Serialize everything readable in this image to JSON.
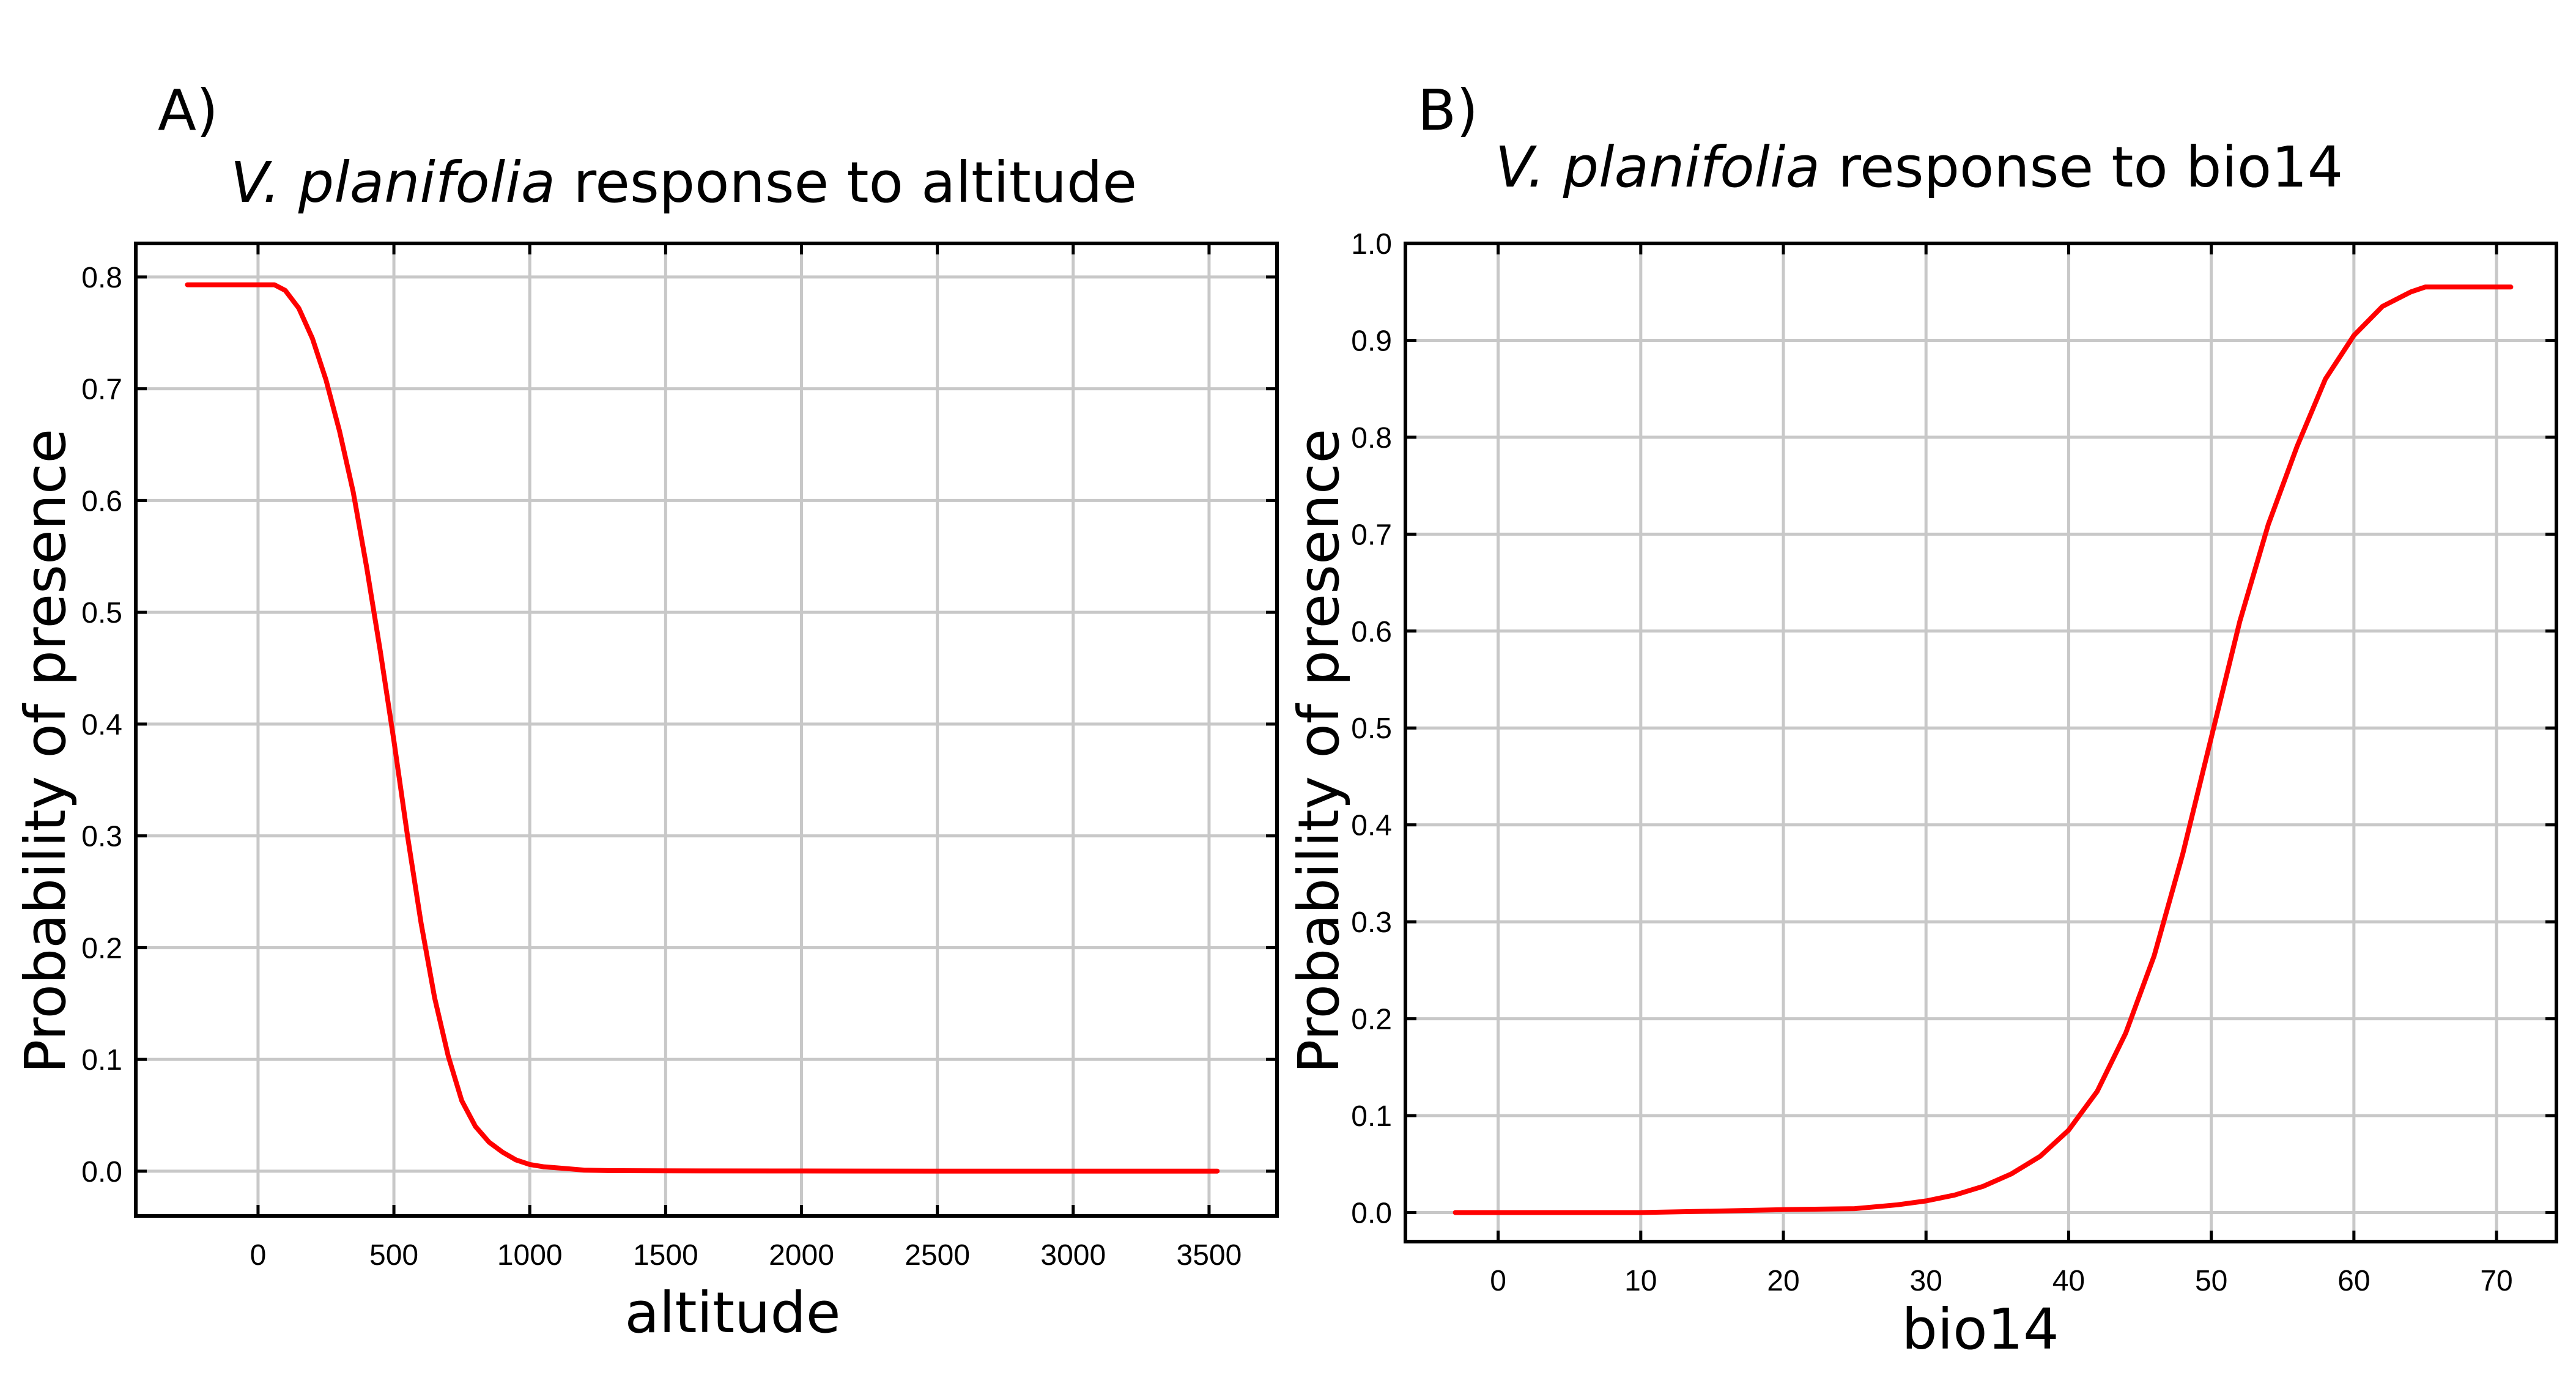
{
  "chart_data": [
    {
      "type": "line",
      "panel_label": "A)",
      "title_italic": "V. planifolia",
      "title_rest": " response to altitude",
      "xlabel": "altitude",
      "ylabel": "Probability of presence",
      "xlim": [
        -450,
        3750
      ],
      "ylim": [
        -0.04,
        0.83
      ],
      "x_ticks": [
        0,
        500,
        1000,
        1500,
        2000,
        2500,
        3000,
        3500
      ],
      "x_tick_labels": [
        "0",
        "500",
        "1000",
        "1500",
        "2000",
        "2500",
        "3000",
        "3500"
      ],
      "y_ticks": [
        0.0,
        0.1,
        0.2,
        0.3,
        0.4,
        0.5,
        0.6,
        0.7,
        0.8
      ],
      "y_tick_labels": [
        "0.0",
        "0.1",
        "0.2",
        "0.3",
        "0.4",
        "0.5",
        "0.6",
        "0.7",
        "0.8"
      ],
      "grid": true,
      "color": "#ff0000",
      "series": [
        {
          "x": [
            -260,
            0,
            60,
            100,
            150,
            200,
            250,
            300,
            350,
            400,
            450,
            500,
            550,
            600,
            650,
            700,
            750,
            800,
            850,
            900,
            950,
            1000,
            1050,
            1100,
            1150,
            1200,
            1300,
            1500,
            2000,
            2500,
            3000,
            3530
          ],
          "y": [
            0.793,
            0.793,
            0.793,
            0.788,
            0.772,
            0.745,
            0.708,
            0.662,
            0.608,
            0.54,
            0.465,
            0.385,
            0.3,
            0.222,
            0.155,
            0.103,
            0.063,
            0.04,
            0.026,
            0.017,
            0.01,
            0.006,
            0.004,
            0.003,
            0.002,
            0.001,
            0.0005,
            0.0003,
            0.0002,
            0.0001,
            0.0001,
            0.0001
          ]
        }
      ]
    },
    {
      "type": "line",
      "panel_label": "B)",
      "title_italic": "V. planifolia",
      "title_rest": " response to bio14",
      "xlabel": "bio14",
      "ylabel": "Probability of presence",
      "xlim": [
        -6.5,
        74.2
      ],
      "ylim": [
        -0.03,
        1.0
      ],
      "x_ticks": [
        0,
        10,
        20,
        30,
        40,
        50,
        60,
        70
      ],
      "x_tick_labels": [
        "0",
        "10",
        "20",
        "30",
        "40",
        "50",
        "60",
        "70"
      ],
      "y_ticks": [
        0.0,
        0.1,
        0.2,
        0.3,
        0.4,
        0.5,
        0.6,
        0.7,
        0.8,
        0.9,
        1.0
      ],
      "y_tick_labels": [
        "0.0",
        "0.1",
        "0.2",
        "0.3",
        "0.4",
        "0.5",
        "0.6",
        "0.7",
        "0.8",
        "0.9",
        "1.0"
      ],
      "grid": true,
      "color": "#ff0000",
      "series": [
        {
          "x": [
            -3,
            10,
            17,
            20,
            25,
            28,
            30,
            32,
            34,
            36,
            38,
            40,
            42,
            44,
            46,
            48,
            50,
            52,
            54,
            56,
            58,
            60,
            62,
            64,
            65,
            71
          ],
          "y": [
            0.0,
            0.0,
            0.002,
            0.003,
            0.004,
            0.008,
            0.012,
            0.018,
            0.027,
            0.04,
            0.058,
            0.085,
            0.125,
            0.185,
            0.265,
            0.37,
            0.49,
            0.61,
            0.71,
            0.79,
            0.86,
            0.905,
            0.935,
            0.95,
            0.955,
            0.955
          ]
        }
      ]
    }
  ]
}
